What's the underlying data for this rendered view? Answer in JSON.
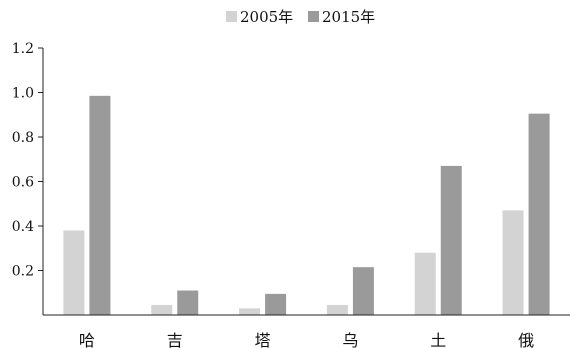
{
  "chart_data": {
    "type": "bar",
    "categories": [
      "哈",
      "吉",
      "塔",
      "乌",
      "土",
      "俄"
    ],
    "series": [
      {
        "name": "2005年",
        "values": [
          0.38,
          0.045,
          0.03,
          0.045,
          0.28,
          0.47
        ],
        "color": "#d3d3d3"
      },
      {
        "name": "2015年",
        "values": [
          0.985,
          0.11,
          0.095,
          0.215,
          0.67,
          0.905
        ],
        "color": "#9a9a9a"
      }
    ],
    "ylim": [
      0,
      1.2
    ],
    "yticks": [
      "1.2",
      "1.0",
      "0.8",
      "0.6",
      "0.4",
      "0.2"
    ],
    "ytick_values": [
      1.2,
      1.0,
      0.8,
      0.6,
      0.4,
      0.2
    ],
    "legend_position": "top-center",
    "grid": false
  }
}
